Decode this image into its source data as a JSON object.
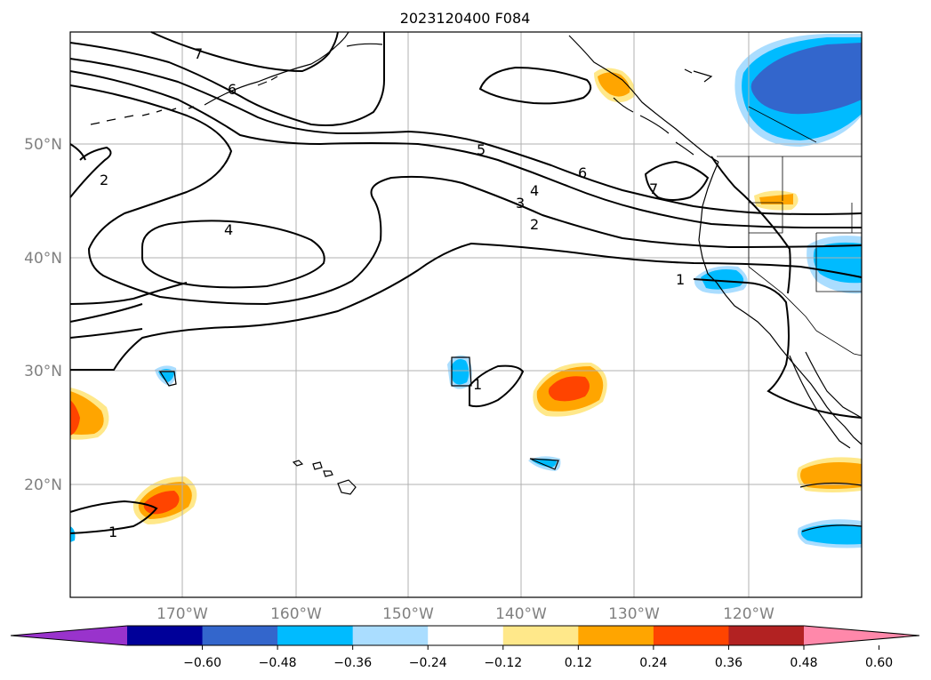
{
  "title": "2023120400 F084",
  "lat_labels": [
    "50°N",
    "40°N",
    "30°N",
    "20°N"
  ],
  "lon_labels": [
    "170°W",
    "160°W",
    "150°W",
    "140°W",
    "130°W",
    "120°W"
  ],
  "colorbar": {
    "colors": [
      "#9933cc",
      "#000099",
      "#3366cc",
      "#00bbff",
      "#aaddff",
      "#ffffff",
      "#ffe88a",
      "#ffa500",
      "#ff4400",
      "#b22222",
      "#ff88aa"
    ],
    "ticks": [
      "−0.60",
      "−0.48",
      "−0.36",
      "−0.24",
      "−0.12",
      "0.12",
      "0.24",
      "0.36",
      "0.48",
      "0.60"
    ]
  },
  "contour_labels": [
    "7",
    "6",
    "5",
    "6",
    "4",
    "3",
    "2",
    "7",
    "2",
    "4",
    "1",
    "1",
    "1"
  ]
}
